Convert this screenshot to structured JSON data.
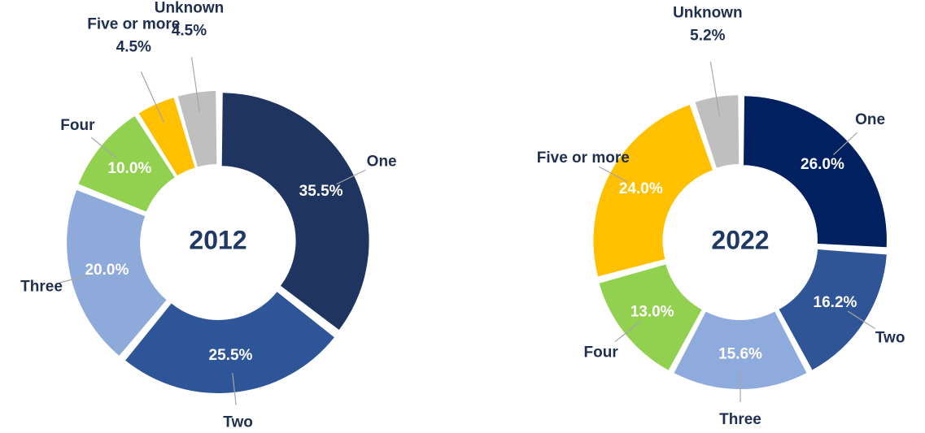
{
  "chart_data": [
    {
      "type": "donut",
      "title": "2012",
      "categories": [
        "One",
        "Two",
        "Three",
        "Four",
        "Five or more",
        "Unknown"
      ],
      "values": [
        35.5,
        25.5,
        20.0,
        10.0,
        4.5,
        4.5
      ],
      "value_labels": [
        "35.5%",
        "25.5%",
        "20.0%",
        "10.0%",
        "4.5%",
        "4.5%"
      ],
      "colors": [
        "#1f3560",
        "#2e5597",
        "#8eaadb",
        "#92d050",
        "#ffc000",
        "#bfbfbf"
      ]
    },
    {
      "type": "donut",
      "title": "2022",
      "categories": [
        "One",
        "Two",
        "Three",
        "Four",
        "Five or more",
        "Unknown"
      ],
      "values": [
        26.0,
        16.2,
        15.6,
        13.0,
        24.0,
        5.2
      ],
      "value_labels": [
        "26.0%",
        "16.2%",
        "15.6%",
        "13.0%",
        "24.0%",
        "5.2%"
      ],
      "colors": [
        "#002060",
        "#2f5597",
        "#8faadc",
        "#92d050",
        "#ffc000",
        "#bfbfbf"
      ]
    }
  ]
}
